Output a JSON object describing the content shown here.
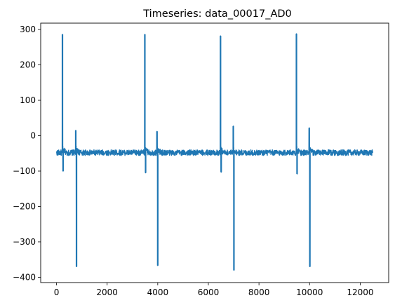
{
  "chart_data": {
    "type": "line",
    "title": "Timeseries: data_00017_AD0",
    "xlabel": "",
    "ylabel": "",
    "xlim": [
      -625,
      13125
    ],
    "ylim": [
      -415,
      318
    ],
    "xticks": [
      0,
      2000,
      4000,
      6000,
      8000,
      10000,
      12000
    ],
    "yticks": [
      -400,
      -300,
      -200,
      -100,
      0,
      100,
      200,
      300
    ],
    "xtick_labels": [
      "0",
      "2000",
      "4000",
      "6000",
      "8000",
      "10000",
      "12000"
    ],
    "ytick_labels": [
      "−400",
      "−300",
      "−200",
      "−100",
      "0",
      "100",
      "200",
      "300"
    ],
    "grid": false,
    "legend": "none",
    "series": [
      {
        "color": "#1f77b4",
        "baseline": -48,
        "noise_amplitude": 8,
        "x_range": [
          0,
          12500
        ],
        "events": [
          {
            "x": 235,
            "y": 286
          },
          {
            "x": 260,
            "y": -100
          },
          {
            "x": 760,
            "y": 15
          },
          {
            "x": 790,
            "y": -370
          },
          {
            "x": 3490,
            "y": 286
          },
          {
            "x": 3520,
            "y": -105
          },
          {
            "x": 3970,
            "y": 12
          },
          {
            "x": 4000,
            "y": -367
          },
          {
            "x": 6480,
            "y": 282
          },
          {
            "x": 6505,
            "y": -103
          },
          {
            "x": 6985,
            "y": 27
          },
          {
            "x": 7010,
            "y": -380
          },
          {
            "x": 9480,
            "y": 288
          },
          {
            "x": 9505,
            "y": -108
          },
          {
            "x": 9985,
            "y": 22
          },
          {
            "x": 10010,
            "y": -370
          }
        ]
      }
    ]
  }
}
